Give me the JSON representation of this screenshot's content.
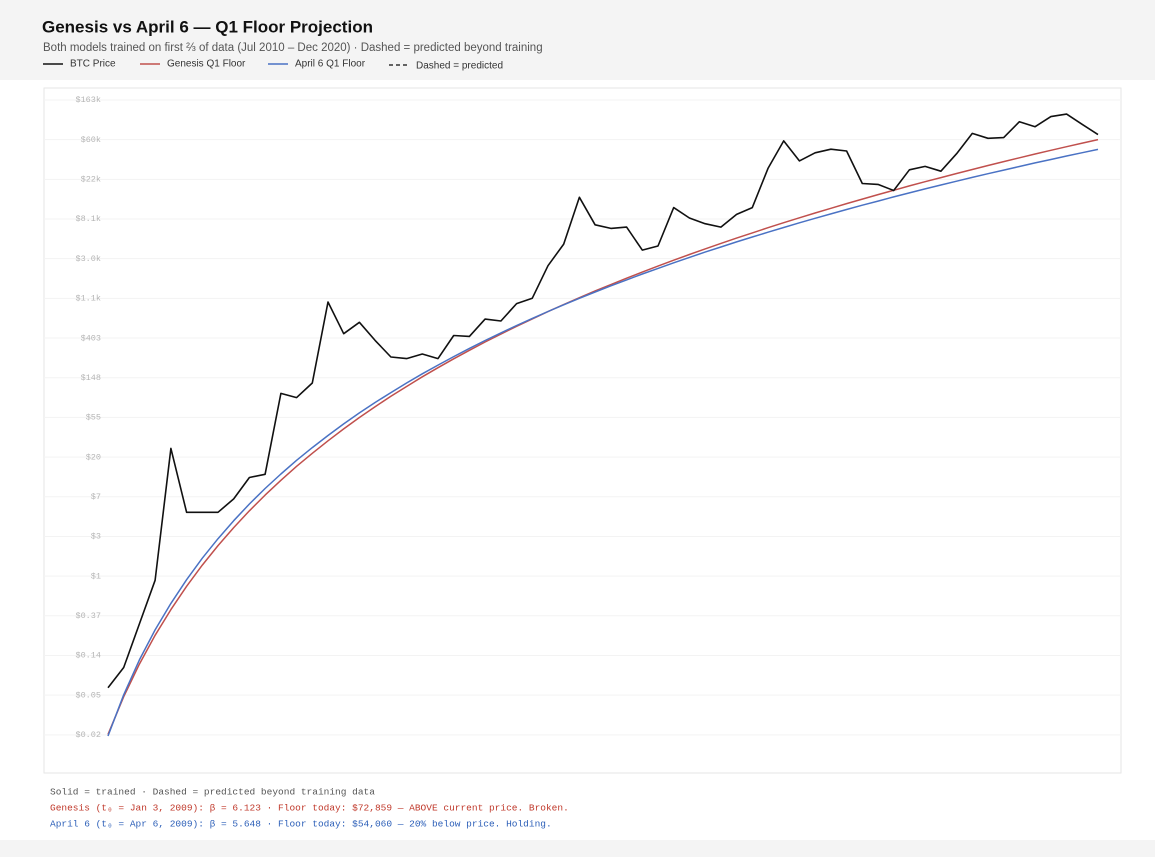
{
  "chart_data": {
    "type": "line",
    "title": "Genesis vs April 6 — Q1 Floor Projection",
    "subtitle": "Both models trained on first ⅔ of data (Jul 2010 – Dec 2020) · Dashed = predicted beyond training",
    "legend_note": "Dashed = predicted",
    "log_scale": true,
    "grid": true,
    "ylim": [
      0.007,
      220000
    ],
    "yticks": [
      {
        "value": 162755,
        "label": "$163k"
      },
      {
        "value": 59874,
        "label": "$60k"
      },
      {
        "value": 22026,
        "label": "$22k"
      },
      {
        "value": 8103,
        "label": "$8.1k"
      },
      {
        "value": 2981,
        "label": "$3.0k"
      },
      {
        "value": 1097,
        "label": "$1.1k"
      },
      {
        "value": 403.43,
        "label": "$403"
      },
      {
        "value": 148.41,
        "label": "$148"
      },
      {
        "value": 54.6,
        "label": "$55"
      },
      {
        "value": 20.09,
        "label": "$20"
      },
      {
        "value": 7.389,
        "label": "$7"
      },
      {
        "value": 2.718,
        "label": "$3"
      },
      {
        "value": 1,
        "label": "$1"
      },
      {
        "value": 0.3679,
        "label": "$0.37"
      },
      {
        "value": 0.1353,
        "label": "$0.14"
      },
      {
        "value": 0.0498,
        "label": "$0.05"
      },
      {
        "value": 0.0183,
        "label": "$0.02"
      }
    ],
    "series": [
      {
        "name": "BTC Price",
        "color": "#111111",
        "width": 1.6,
        "values": [
          0.06,
          0.1,
          0.3,
          0.9,
          25,
          5,
          5,
          5,
          7,
          12,
          13,
          100,
          90,
          130,
          1000,
          450,
          600,
          380,
          250,
          240,
          270,
          240,
          430,
          420,
          650,
          620,
          960,
          1100,
          2500,
          4300,
          14000,
          7000,
          6400,
          6600,
          3700,
          4100,
          10800,
          8300,
          7200,
          6600,
          9100,
          10800,
          29000,
          58000,
          35000,
          43000,
          47000,
          45000,
          19800,
          19400,
          16600,
          28000,
          30500,
          27000,
          42000,
          70000,
          62000,
          63000,
          94000,
          83000,
          107000,
          114000,
          88000,
          68000
        ]
      },
      {
        "name": "Genesis Q1 Floor",
        "color": "#c0504d",
        "width": 1.5,
        "values": [
          0.0185,
          0.0479,
          0.109,
          0.225,
          0.43,
          0.773,
          1.32,
          2.16,
          3.4,
          5.19,
          7.71,
          11.2,
          15.9,
          22.1,
          30.3,
          40.9,
          54.4,
          71.5,
          92.8,
          119,
          152,
          191,
          239,
          296,
          365,
          446,
          542,
          654,
          786,
          939,
          1115,
          1319,
          1553,
          1821,
          2127,
          2474,
          2867,
          3312,
          3813,
          4377,
          5008,
          5713,
          6501,
          7375,
          8346,
          9421,
          10616,
          11934,
          13374,
          14970,
          16714,
          18639,
          20734,
          23022,
          25519,
          28231,
          31194,
          34405,
          37901,
          41675,
          45765,
          50170,
          54930,
          60000
        ]
      },
      {
        "name": "April 6 Q1 Floor",
        "color": "#4a72c4",
        "width": 1.5,
        "values": [
          0.0178,
          0.0502,
          0.121,
          0.258,
          0.503,
          0.914,
          1.57,
          2.57,
          4.04,
          6.15,
          9.09,
          13.1,
          18.5,
          25.5,
          34.6,
          46.3,
          61.1,
          79.4,
          102,
          130,
          164,
          204,
          253,
          311,
          379,
          459,
          553,
          661,
          788,
          932,
          1098,
          1288,
          1503,
          1748,
          2024,
          2336,
          2685,
          3077,
          3515,
          4003,
          4546,
          5147,
          5812,
          6547,
          7355,
          8244,
          9219,
          10293,
          11466,
          12736,
          14131,
          15643,
          17299,
          19086,
          21020,
          23113,
          25370,
          27815,
          30447,
          33290,
          36334,
          39613,
          43114,
          46873
        ]
      }
    ],
    "notes": [
      {
        "text": "Solid = trained · Dashed = predicted beyond training data",
        "color": "#555555"
      },
      {
        "text": "Genesis (t₀ = Jan 3, 2009): β = 6.123 · Floor today: $72,859 — ABOVE current price. Broken.",
        "color": "#c0392b"
      },
      {
        "text": "April 6 (t₀ = Apr 6, 2009): β = 5.648 · Floor today: $54,060 — 20% below price. Holding.",
        "color": "#2c5fb8"
      }
    ]
  }
}
